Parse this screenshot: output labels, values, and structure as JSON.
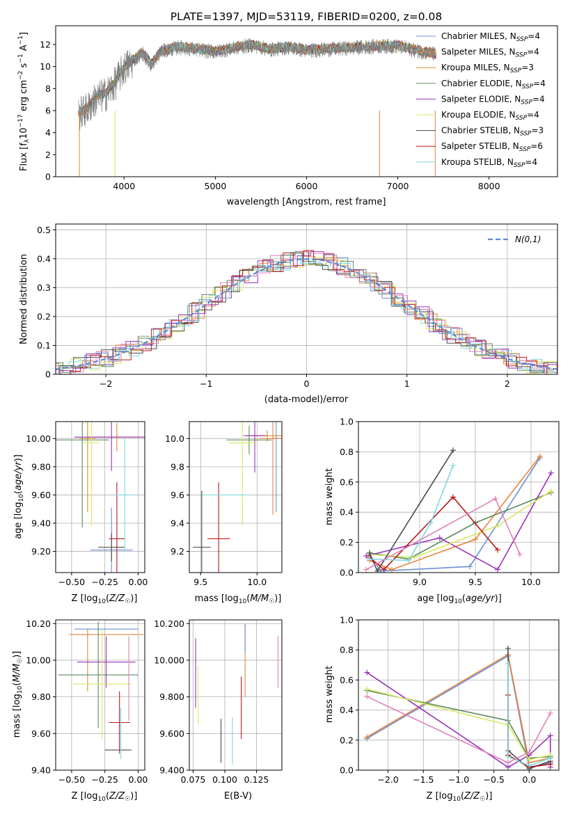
{
  "figure": {
    "title": "PLATE=1397, MJD=53119, FIBERID=0200, z=0.08"
  },
  "series_styles": [
    {
      "name": "Chabrier MILES",
      "nssp": "4",
      "color": "#6a8fd4"
    },
    {
      "name": "Salpeter MILES",
      "nssp": "4",
      "color": "#e8823a"
    },
    {
      "name": "Kroupa MILES",
      "nssp": "3",
      "color": "#d88a2e"
    },
    {
      "name": "Chabrier ELODIE",
      "nssp": "4",
      "color": "#5a8a5a"
    },
    {
      "name": "Salpeter ELODIE",
      "nssp": "4",
      "color": "#9932b8"
    },
    {
      "name": "Kroupa ELODIE",
      "nssp": "4",
      "color": "#d8e860"
    },
    {
      "name": "Chabrier STELIB",
      "nssp": "3",
      "color": "#4a4a4a"
    },
    {
      "name": "Salpeter STELIB",
      "nssp": "6",
      "color": "#b81818"
    },
    {
      "name": "Kroupa STELIB",
      "nssp": "4",
      "color": "#80d8e0"
    }
  ],
  "chart_data": [
    {
      "id": "spectrum",
      "type": "line",
      "xlabel": "wavelength [Angstrom, rest frame]",
      "ylabel": "Flux [f_λ 10^-17 erg cm^-2 s^-1 A^-1]",
      "xlim": [
        3250,
        8750
      ],
      "ylim": [
        0,
        13.7
      ],
      "xticks": [
        4000,
        5000,
        6000,
        7000,
        8000
      ],
      "yticks": [
        0,
        2,
        4,
        6,
        8,
        10,
        12
      ],
      "legend_position": "right",
      "data_color": "#808080",
      "observed_envelope": {
        "x": [
          3500,
          3600,
          3700,
          3800,
          3900,
          4000,
          4100,
          4200,
          4300,
          4400,
          4600,
          4800,
          5000,
          5200,
          5400,
          5600,
          5800,
          6000,
          6200,
          6400,
          6600,
          6800,
          7000,
          7200,
          7400
        ],
        "y": [
          5.8,
          6.3,
          7.3,
          7.6,
          8.6,
          10.0,
          10.6,
          11.3,
          10.2,
          11.4,
          11.8,
          11.6,
          11.4,
          11.7,
          12.0,
          11.6,
          11.8,
          11.5,
          11.6,
          11.7,
          11.8,
          11.9,
          11.9,
          11.5,
          11.2
        ]
      }
    },
    {
      "id": "residuals",
      "type": "line",
      "xlabel": "(data-model)/error",
      "ylabel": "Normed distribution",
      "xlim": [
        -2.5,
        2.5
      ],
      "ylim": [
        0,
        0.52
      ],
      "xticks": [
        -2,
        -1,
        0,
        1,
        2
      ],
      "yticks": [
        0.0,
        0.1,
        0.2,
        0.3,
        0.4,
        0.5
      ],
      "legend_position": "top-right",
      "normal_label": "N(0,1)",
      "normal_color": "#5b8bd8"
    },
    {
      "id": "age_vs_Z",
      "type": "scatter",
      "xlabel": "Z [log10(Z/Z☉)]",
      "ylabel": "age [log10(age/yr)]",
      "xlim": [
        -0.62,
        0.05
      ],
      "ylim": [
        9.05,
        10.12
      ],
      "xticks": [
        -0.5,
        -0.25,
        0.0
      ],
      "yticks": [
        9.2,
        9.4,
        9.6,
        9.8,
        10.0
      ],
      "points": [
        {
          "s": 0,
          "x": -0.2,
          "y": 9.21,
          "xe": 0.16,
          "ye": 0.3
        },
        {
          "s": 1,
          "x": -0.16,
          "y": 10.01,
          "xe": 0.22,
          "ye": 0.1
        },
        {
          "s": 2,
          "x": -0.38,
          "y": 10.0,
          "xe": 0.06,
          "ye": 0.52
        },
        {
          "s": 3,
          "x": -0.42,
          "y": 9.99,
          "xe": 0.2,
          "ye": 0.62
        },
        {
          "s": 4,
          "x": -0.2,
          "y": 10.01,
          "xe": 0.28,
          "ye": 0.24
        },
        {
          "s": 5,
          "x": -0.35,
          "y": 9.97,
          "xe": 0.06,
          "ye": 0.59
        },
        {
          "s": 6,
          "x": -0.2,
          "y": 9.23,
          "xe": 0.1,
          "ye": 0.1
        },
        {
          "s": 7,
          "x": -0.16,
          "y": 9.29,
          "xe": 0.06,
          "ye": 0.4
        },
        {
          "s": 8,
          "x": -0.1,
          "y": 9.6,
          "xe": 0.08,
          "ye": 0.4
        }
      ]
    },
    {
      "id": "age_vs_mass",
      "type": "scatter",
      "xlabel": "mass [log10(M/M☉)]",
      "ylabel": "",
      "xlim": [
        9.4,
        10.22
      ],
      "ylim": [
        9.05,
        10.12
      ],
      "xticks": [
        9.5,
        10.0
      ],
      "yticks": [
        9.2,
        9.4,
        9.6,
        9.8,
        10.0
      ],
      "points": [
        {
          "s": 0,
          "x": 10.17,
          "y": 10.0,
          "xe": 0.03,
          "ye": 0.52
        },
        {
          "s": 1,
          "x": 10.14,
          "y": 10.0,
          "xe": 0.12,
          "ye": 0.54
        },
        {
          "s": 2,
          "x": 10.09,
          "y": 10.02,
          "xe": 0.18,
          "ye": 0.04
        },
        {
          "s": 3,
          "x": 9.93,
          "y": 9.99,
          "xe": 0.2,
          "ye": 0.1
        },
        {
          "s": 4,
          "x": 9.98,
          "y": 10.02,
          "xe": 0.1,
          "ye": 0.26
        },
        {
          "s": 5,
          "x": 9.87,
          "y": 9.97,
          "xe": 0.12,
          "ye": 0.59
        },
        {
          "s": 6,
          "x": 9.51,
          "y": 9.23,
          "xe": 0.08,
          "ye": 0.4
        },
        {
          "s": 7,
          "x": 9.66,
          "y": 9.29,
          "xe": 0.1,
          "ye": 0.4
        },
        {
          "s": 8,
          "x": 9.72,
          "y": 9.6,
          "xe": 0.2,
          "ye": 0.0
        }
      ]
    },
    {
      "id": "weight_vs_age",
      "type": "line",
      "xlabel": "age [log10(age/yr)]",
      "ylabel": "mass weight",
      "xlim": [
        8.45,
        10.25
      ],
      "ylim": [
        0,
        1.0
      ],
      "xticks": [
        9.0,
        9.5,
        10.0
      ],
      "yticks": [
        0.0,
        0.2,
        0.4,
        0.6,
        0.8,
        1.0
      ],
      "series": [
        {
          "s": 0,
          "x": [
            8.55,
            8.65,
            9.45,
            10.08
          ],
          "y": [
            0.12,
            0.01,
            0.04,
            0.76
          ]
        },
        {
          "s": 1,
          "x": [
            8.55,
            8.75,
            9.5,
            10.08
          ],
          "y": [
            0.08,
            0.02,
            0.22,
            0.77
          ]
        },
        {
          "s": 3,
          "x": [
            8.55,
            8.9,
            9.5,
            10.18
          ],
          "y": [
            0.13,
            0.09,
            0.33,
            0.53
          ]
        },
        {
          "s": 4,
          "x": [
            8.52,
            9.18,
            9.7,
            10.18
          ],
          "y": [
            0.11,
            0.23,
            0.02,
            0.66
          ]
        },
        {
          "s": 5,
          "x": [
            8.55,
            8.95,
            9.7,
            10.18
          ],
          "y": [
            0.12,
            0.1,
            0.31,
            0.54
          ]
        },
        {
          "s": 6,
          "x": [
            8.55,
            8.62,
            9.3
          ],
          "y": [
            0.13,
            0.01,
            0.81
          ]
        },
        {
          "s": 7,
          "x": [
            8.55,
            8.68,
            9.3,
            9.7
          ],
          "y": [
            0.1,
            0.02,
            0.5,
            0.15
          ]
        },
        {
          "s": 8,
          "x": [
            8.55,
            8.9,
            9.1,
            9.3
          ],
          "y": [
            0.09,
            0.08,
            0.33,
            0.71
          ]
        },
        {
          "s": 9,
          "x": [
            8.52,
            9.68,
            9.9
          ],
          "y": [
            0.02,
            0.49,
            0.12
          ]
        }
      ]
    },
    {
      "id": "mass_vs_Z",
      "type": "scatter",
      "xlabel": "Z [log10(Z/Z☉)]",
      "ylabel": "mass [log10(M/M☉)]",
      "xlim": [
        -0.62,
        0.05
      ],
      "ylim": [
        9.4,
        10.22
      ],
      "xticks": [
        -0.5,
        -0.25,
        0.0
      ],
      "yticks": [
        9.4,
        9.6,
        9.8,
        10.0,
        10.2
      ],
      "points": [
        {
          "s": 0,
          "x": -0.24,
          "y": 10.17,
          "xe": 0.24,
          "ye": 0.0
        },
        {
          "s": 1,
          "x": -0.24,
          "y": 10.14,
          "xe": 0.28,
          "ye": 0.0
        },
        {
          "s": 2,
          "x": -0.38,
          "y": 10.0,
          "xe": 0.0,
          "ye": 0.17
        },
        {
          "s": 3,
          "x": -0.3,
          "y": 9.92,
          "xe": 0.3,
          "ye": 0.29
        },
        {
          "s": 4,
          "x": -0.24,
          "y": 9.99,
          "xe": 0.22,
          "ye": 0.14
        },
        {
          "s": 5,
          "x": -0.27,
          "y": 9.87,
          "xe": 0.22,
          "ye": 0.3
        },
        {
          "s": 6,
          "x": -0.15,
          "y": 9.51,
          "xe": 0.1,
          "ye": 0.0
        },
        {
          "s": 7,
          "x": -0.14,
          "y": 9.66,
          "xe": 0.08,
          "ye": 0.17
        },
        {
          "s": 8,
          "x": -0.13,
          "y": 9.6,
          "xe": 0.0,
          "ye": 0.14
        },
        {
          "s": 9,
          "x": -0.07,
          "y": 9.9,
          "xe": 0.0,
          "ye": 0.23
        }
      ]
    },
    {
      "id": "mass_vs_EBV",
      "type": "scatter",
      "xlabel": "E(B-V)",
      "ylabel": "",
      "xlim": [
        0.072,
        0.145
      ],
      "ylim": [
        9.4,
        10.22
      ],
      "xticks": [
        0.075,
        0.1,
        0.125
      ],
      "yticks": [
        9.4,
        9.6,
        9.8,
        10.0,
        10.2
      ],
      "points": [
        {
          "s": 1,
          "x": 0.116,
          "y": 10.0,
          "ye": 0.2
        },
        {
          "s": 4,
          "x": 0.077,
          "y": 9.93,
          "ye": 0.19
        },
        {
          "s": 5,
          "x": 0.079,
          "y": 9.81,
          "ye": 0.16
        },
        {
          "s": 6,
          "x": 0.097,
          "y": 9.56,
          "ye": 0.12
        },
        {
          "s": 7,
          "x": 0.113,
          "y": 9.74,
          "ye": 0.17
        },
        {
          "s": 8,
          "x": 0.106,
          "y": 9.56,
          "ye": 0.13
        },
        {
          "s": 9,
          "x": 0.142,
          "y": 9.99,
          "ye": 0.14
        },
        {
          "s": 0,
          "x": 0.116,
          "y": 10.12,
          "ye": 0.08
        }
      ]
    },
    {
      "id": "weight_vs_Z",
      "type": "line",
      "xlabel": "Z [log10(Z/Z☉)]",
      "ylabel": "mass weight",
      "xlim": [
        -2.42,
        0.42
      ],
      "ylim": [
        0,
        1.0
      ],
      "xticks": [
        -2.0,
        -1.5,
        -1.0,
        -0.5,
        0.0
      ],
      "yticks": [
        0.0,
        0.2,
        0.4,
        0.6,
        0.8,
        1.0
      ],
      "series": [
        {
          "s": 0,
          "x": [
            -2.3,
            -0.3,
            0.0,
            0.3
          ],
          "y": [
            0.21,
            0.76,
            0.02,
            0.05
          ]
        },
        {
          "s": 1,
          "x": [
            -2.3,
            -0.3,
            0.0,
            0.3
          ],
          "y": [
            0.22,
            0.77,
            0.05,
            0.08
          ]
        },
        {
          "s": 3,
          "x": [
            -2.3,
            -0.3,
            0.0,
            0.3
          ],
          "y": [
            0.53,
            0.33,
            0.08,
            0.09
          ]
        },
        {
          "s": 4,
          "x": [
            -2.3,
            -0.3,
            0.0,
            0.3,
            0.3
          ],
          "y": [
            0.65,
            0.02,
            0.1,
            0.23,
            0.02
          ]
        },
        {
          "s": 5,
          "x": [
            -2.3,
            -0.3,
            0.0,
            0.3
          ],
          "y": [
            0.54,
            0.3,
            0.07,
            0.1
          ]
        },
        {
          "s": 6,
          "x": [
            -0.3,
            -0.3,
            0.0,
            0.3
          ],
          "y": [
            0.81,
            0.13,
            0.01,
            0.06
          ]
        },
        {
          "s": 7,
          "x": [
            -0.3,
            -0.3,
            0.0,
            0.3
          ],
          "y": [
            0.5,
            0.1,
            0.02,
            0.04
          ]
        },
        {
          "s": 8,
          "x": [
            -0.3,
            -0.3,
            0.0,
            0.3
          ],
          "y": [
            0.71,
            0.09,
            0.03,
            0.08
          ]
        },
        {
          "s": 9,
          "x": [
            -2.3,
            -0.3,
            0.0,
            0.3
          ],
          "y": [
            0.49,
            0.05,
            0.12,
            0.38
          ]
        }
      ]
    }
  ]
}
